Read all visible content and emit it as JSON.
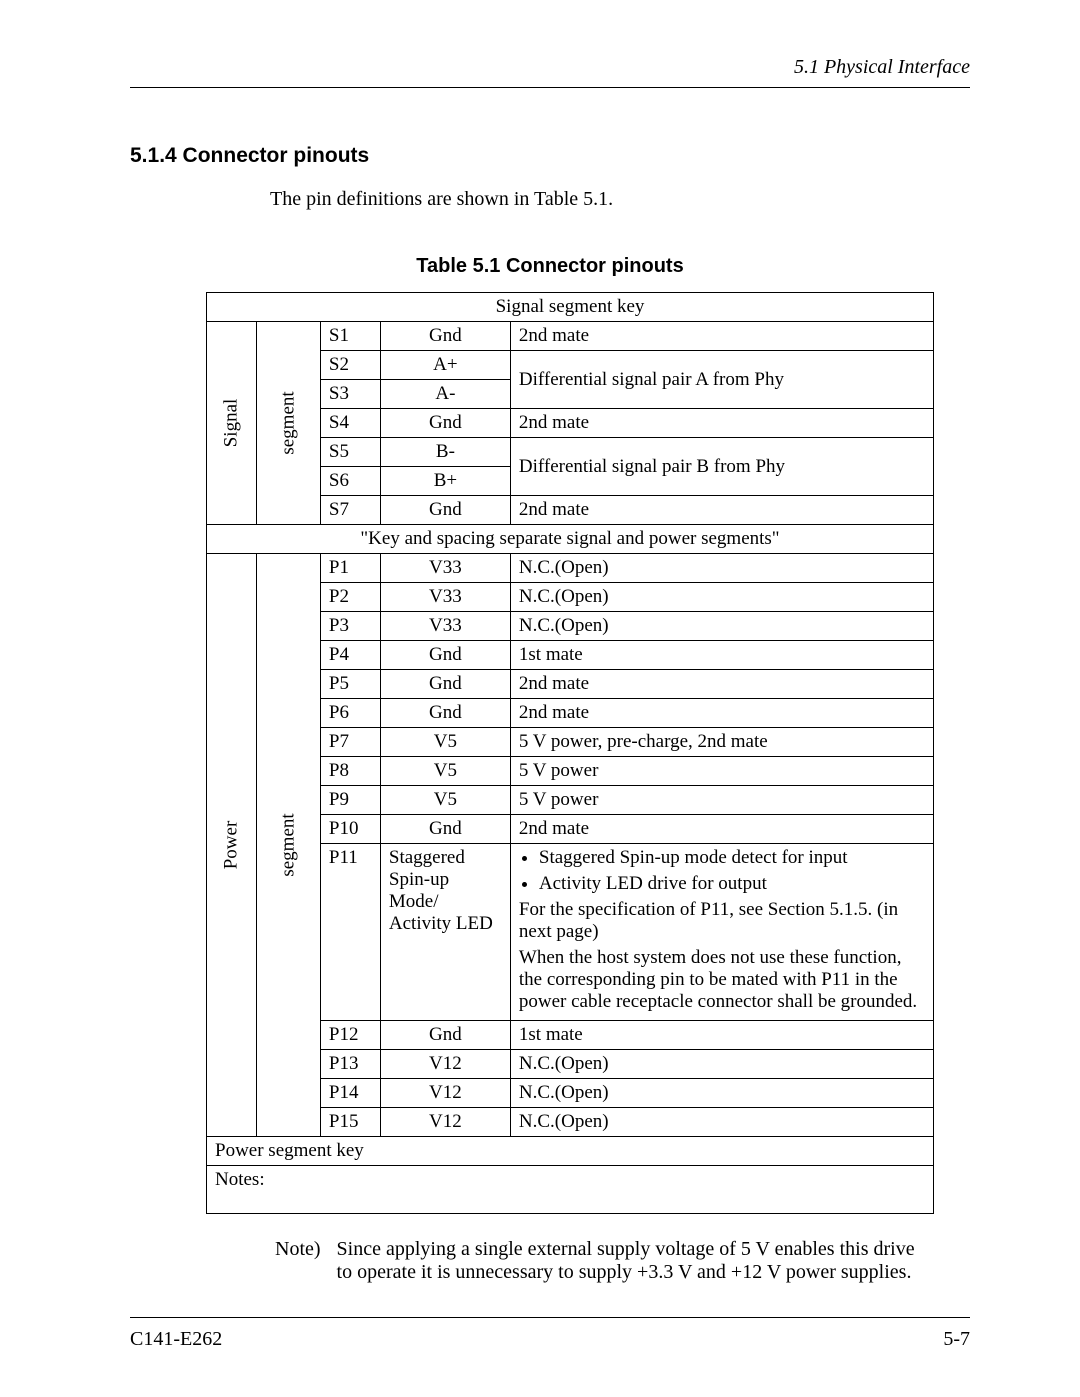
{
  "header": {
    "section": "5.1  Physical Interface"
  },
  "heading": "5.1.4  Connector pinouts",
  "intro": "The pin definitions are shown in Table 5.1.",
  "table": {
    "title": "Table 5.1  Connector pinouts",
    "signal_segment_key": "Signal segment key",
    "signal_label_1": "Signal",
    "signal_label_2": "segment",
    "signal_rows": [
      {
        "pin": "S1",
        "name": "Gnd",
        "desc": "2nd mate",
        "rowspan": 1
      },
      {
        "pin": "S2",
        "name": "A+",
        "desc": "Differential signal pair A from Phy",
        "rowspan": 2
      },
      {
        "pin": "S3",
        "name": "A-",
        "desc": "",
        "rowspan": 0
      },
      {
        "pin": "S4",
        "name": "Gnd",
        "desc": "2nd mate",
        "rowspan": 1
      },
      {
        "pin": "S5",
        "name": "B-",
        "desc": "Differential signal pair B from Phy",
        "rowspan": 2
      },
      {
        "pin": "S6",
        "name": "B+",
        "desc": "",
        "rowspan": 0
      },
      {
        "pin": "S7",
        "name": "Gnd",
        "desc": "2nd mate",
        "rowspan": 1
      }
    ],
    "key_spacing": "\"Key and spacing separate signal and power segments\"",
    "power_label_1": "Power",
    "power_label_2": "segment",
    "power_rows_top": [
      {
        "pin": "P1",
        "name": "V33",
        "desc": "N.C.(Open)"
      },
      {
        "pin": "P2",
        "name": "V33",
        "desc": "N.C.(Open)"
      },
      {
        "pin": "P3",
        "name": "V33",
        "desc": "N.C.(Open)"
      },
      {
        "pin": "P4",
        "name": "Gnd",
        "desc": "1st mate"
      },
      {
        "pin": "P5",
        "name": "Gnd",
        "desc": "2nd mate"
      },
      {
        "pin": "P6",
        "name": "Gnd",
        "desc": "2nd mate"
      },
      {
        "pin": "P7",
        "name": "V5",
        "desc": "5 V power, pre-charge, 2nd mate"
      },
      {
        "pin": "P8",
        "name": "V5",
        "desc": "5 V power"
      },
      {
        "pin": "P9",
        "name": "V5",
        "desc": "5 V power"
      },
      {
        "pin": "P10",
        "name": "Gnd",
        "desc": "2nd mate"
      }
    ],
    "p11": {
      "pin": "P11",
      "name": "Staggered Spin-up Mode/ Activity LED",
      "bullets": [
        "Staggered Spin-up mode detect for input",
        "Activity LED drive for output"
      ],
      "para1": "For the specification of P11, see Section 5.1.5.  (in next page)",
      "para2": "When the host system does not use these function, the corresponding pin to be mated with P11 in the power cable receptacle connector shall be grounded."
    },
    "power_rows_bottom": [
      {
        "pin": "P12",
        "name": "Gnd",
        "desc": "1st mate"
      },
      {
        "pin": "P13",
        "name": "V12",
        "desc": "N.C.(Open)"
      },
      {
        "pin": "P14",
        "name": "V12",
        "desc": "N.C.(Open)"
      },
      {
        "pin": "P15",
        "name": "V12",
        "desc": "N.C.(Open)"
      }
    ],
    "power_segment_key": "Power segment key",
    "notes_row": "Notes:"
  },
  "note": {
    "label": "Note)",
    "text": "Since applying a single external supply voltage of 5 V enables this drive to operate it is unnecessary to supply +3.3 V and +12 V power supplies."
  },
  "footer": {
    "left": "C141-E262",
    "right": "5-7"
  }
}
